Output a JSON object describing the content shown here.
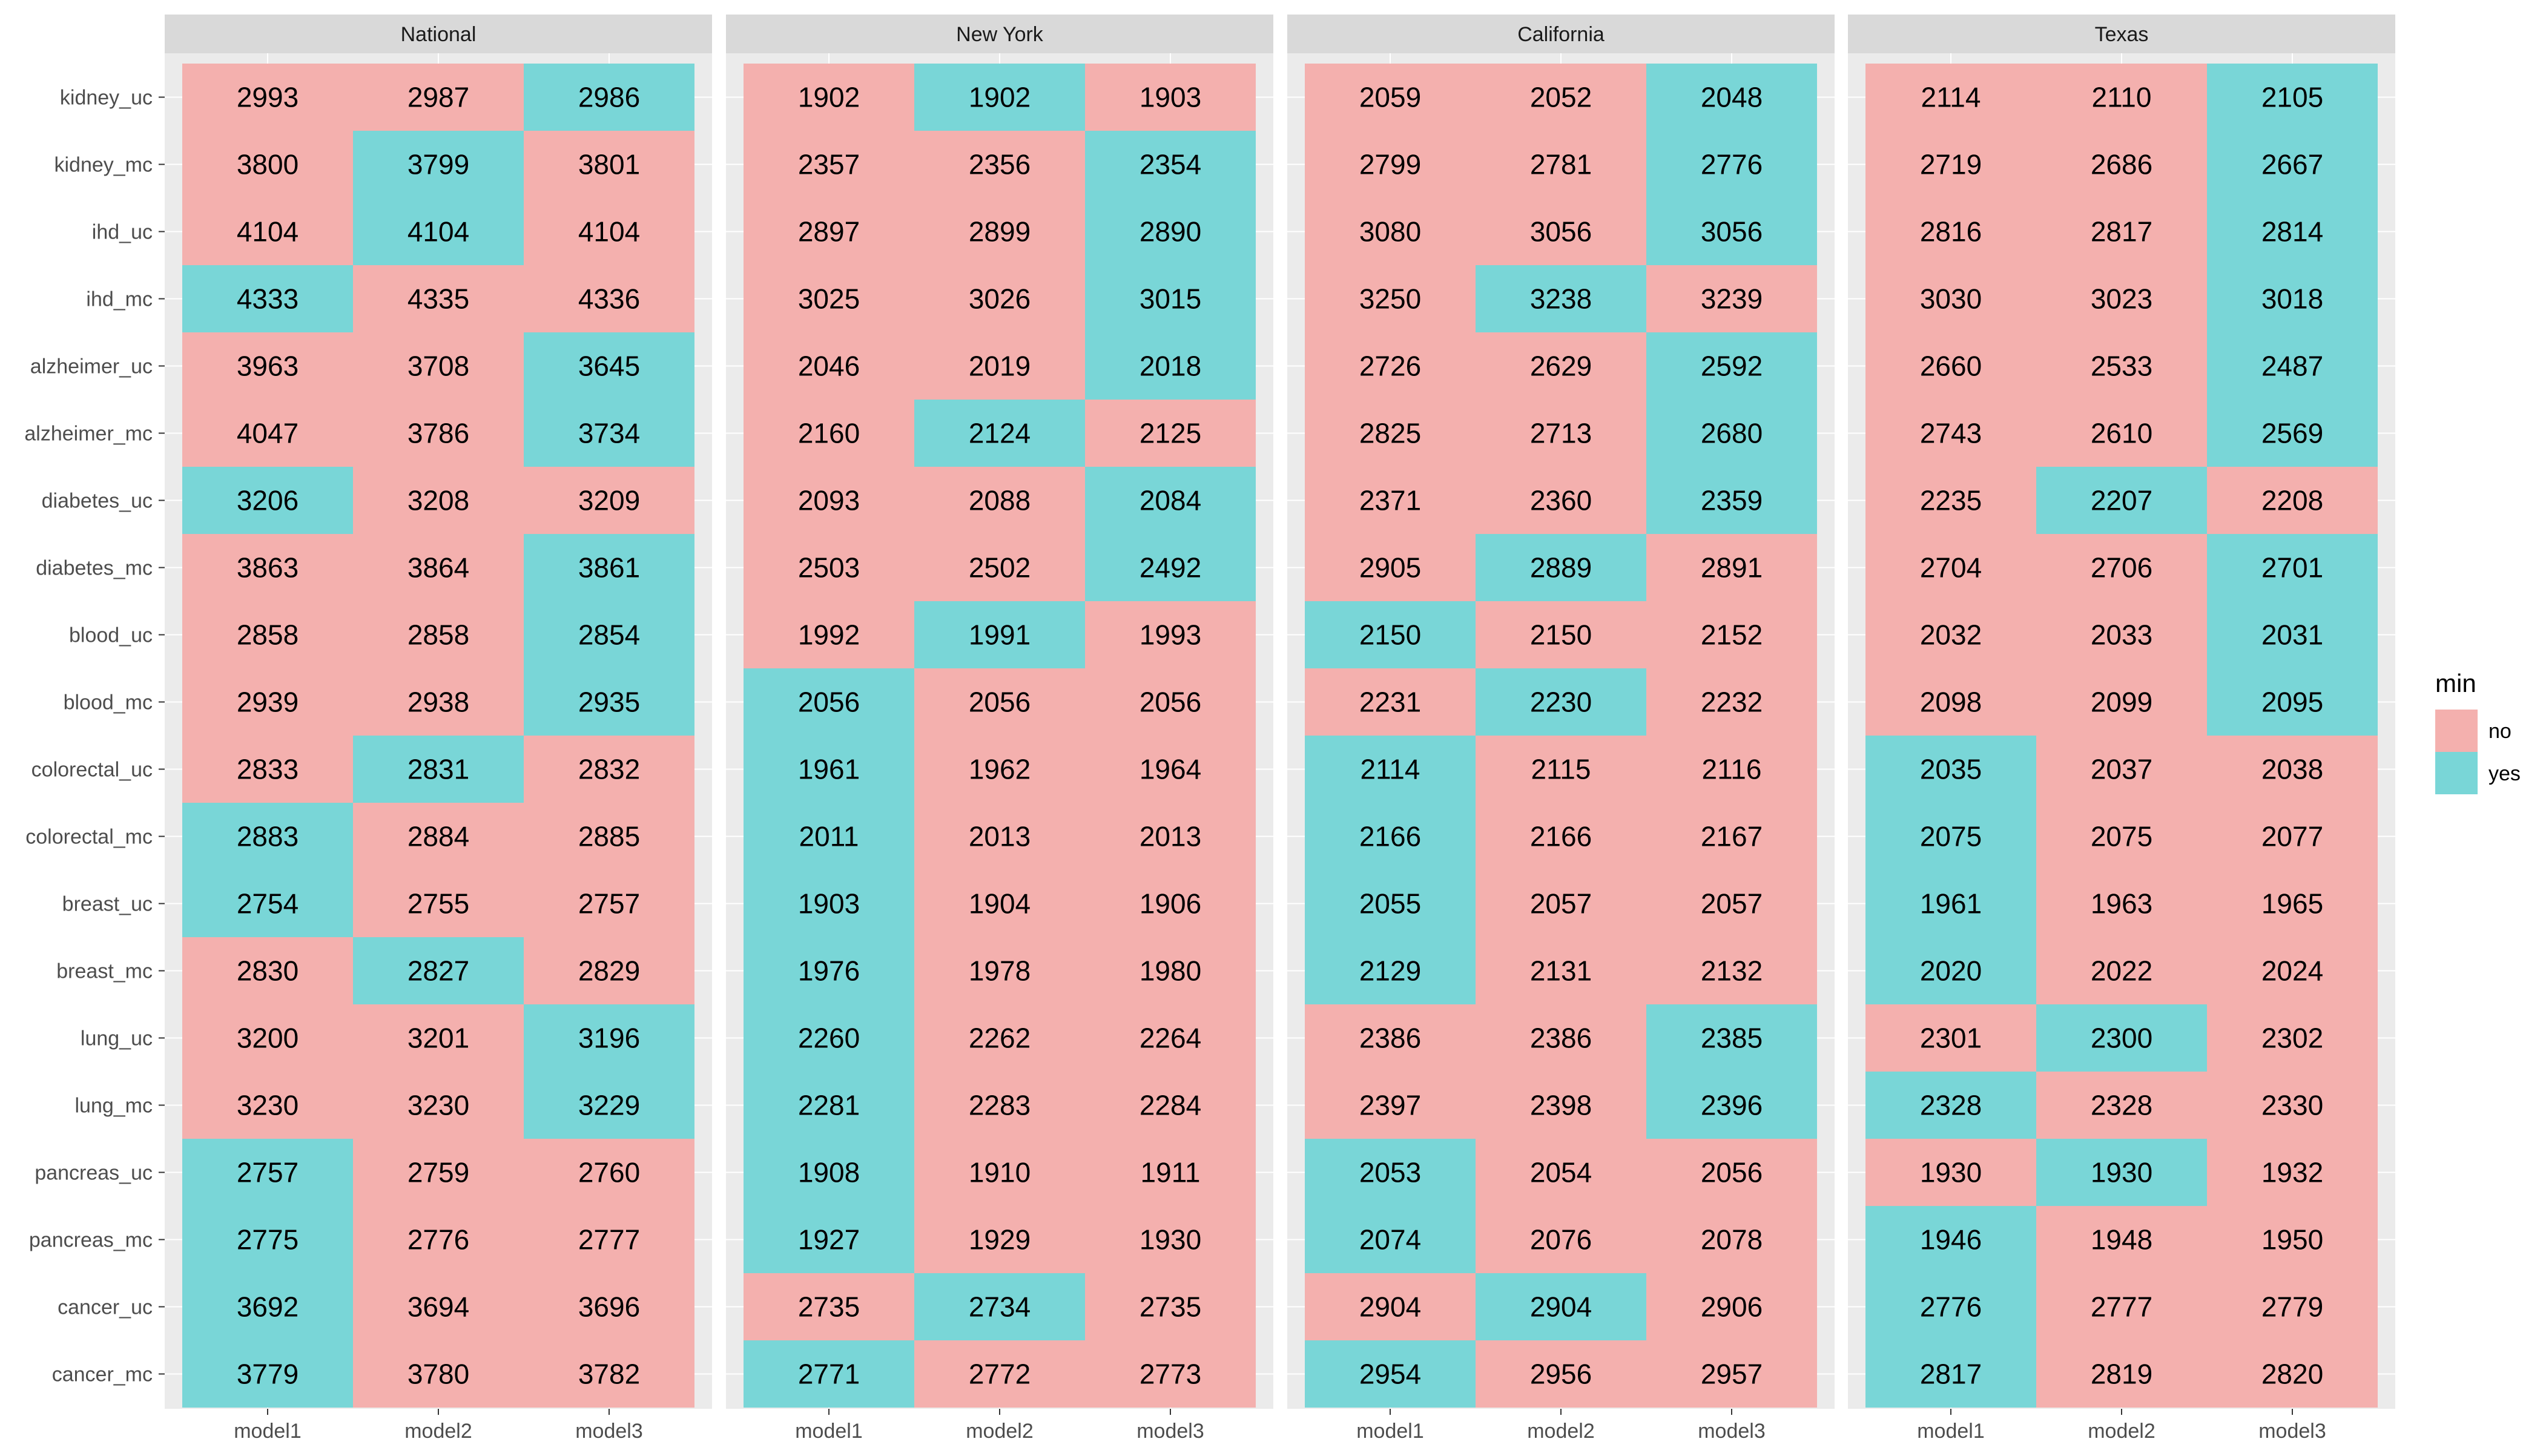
{
  "chart_data": {
    "type": "heatmap",
    "legend": {
      "title": "min",
      "position": "right",
      "entries": [
        {
          "label": "no",
          "color": "#F4B0AE"
        },
        {
          "label": "yes",
          "color": "#79D6D7"
        }
      ]
    },
    "colors": {
      "no": "#F4B0AE",
      "yes": "#79D6D7",
      "panel_bg": "#EBEBEB",
      "strip_bg": "#D9D9D9",
      "grid": "#FFFFFF"
    },
    "rows": [
      "kidney_uc",
      "kidney_mc",
      "ihd_uc",
      "ihd_mc",
      "alzheimer_uc",
      "alzheimer_mc",
      "diabetes_uc",
      "diabetes_mc",
      "blood_uc",
      "blood_mc",
      "colorectal_uc",
      "colorectal_mc",
      "breast_uc",
      "breast_mc",
      "lung_uc",
      "lung_mc",
      "pancreas_uc",
      "pancreas_mc",
      "cancer_uc",
      "cancer_mc"
    ],
    "columns": [
      "model1",
      "model2",
      "model3"
    ],
    "panels": [
      {
        "title": "National",
        "values": [
          [
            2993,
            2987,
            2986
          ],
          [
            3800,
            3799,
            3801
          ],
          [
            4104,
            4104,
            4104
          ],
          [
            4333,
            4335,
            4336
          ],
          [
            3963,
            3708,
            3645
          ],
          [
            4047,
            3786,
            3734
          ],
          [
            3206,
            3208,
            3209
          ],
          [
            3863,
            3864,
            3861
          ],
          [
            2858,
            2858,
            2854
          ],
          [
            2939,
            2938,
            2935
          ],
          [
            2833,
            2831,
            2832
          ],
          [
            2883,
            2884,
            2885
          ],
          [
            2754,
            2755,
            2757
          ],
          [
            2830,
            2827,
            2829
          ],
          [
            3200,
            3201,
            3196
          ],
          [
            3230,
            3230,
            3229
          ],
          [
            2757,
            2759,
            2760
          ],
          [
            2775,
            2776,
            2777
          ],
          [
            3692,
            3694,
            3696
          ],
          [
            3779,
            3780,
            3782
          ]
        ],
        "min": [
          [
            0,
            0,
            1
          ],
          [
            0,
            1,
            0
          ],
          [
            0,
            1,
            0
          ],
          [
            1,
            0,
            0
          ],
          [
            0,
            0,
            1
          ],
          [
            0,
            0,
            1
          ],
          [
            1,
            0,
            0
          ],
          [
            0,
            0,
            1
          ],
          [
            0,
            0,
            1
          ],
          [
            0,
            0,
            1
          ],
          [
            0,
            1,
            0
          ],
          [
            1,
            0,
            0
          ],
          [
            1,
            0,
            0
          ],
          [
            0,
            1,
            0
          ],
          [
            0,
            0,
            1
          ],
          [
            0,
            0,
            1
          ],
          [
            1,
            0,
            0
          ],
          [
            1,
            0,
            0
          ],
          [
            1,
            0,
            0
          ],
          [
            1,
            0,
            0
          ]
        ]
      },
      {
        "title": "New York",
        "values": [
          [
            1902,
            1902,
            1903
          ],
          [
            2357,
            2356,
            2354
          ],
          [
            2897,
            2899,
            2890
          ],
          [
            3025,
            3026,
            3015
          ],
          [
            2046,
            2019,
            2018
          ],
          [
            2160,
            2124,
            2125
          ],
          [
            2093,
            2088,
            2084
          ],
          [
            2503,
            2502,
            2492
          ],
          [
            1992,
            1991,
            1993
          ],
          [
            2056,
            2056,
            2056
          ],
          [
            1961,
            1962,
            1964
          ],
          [
            2011,
            2013,
            2013
          ],
          [
            1903,
            1904,
            1906
          ],
          [
            1976,
            1978,
            1980
          ],
          [
            2260,
            2262,
            2264
          ],
          [
            2281,
            2283,
            2284
          ],
          [
            1908,
            1910,
            1911
          ],
          [
            1927,
            1929,
            1930
          ],
          [
            2735,
            2734,
            2735
          ],
          [
            2771,
            2772,
            2773
          ]
        ],
        "min": [
          [
            0,
            1,
            0
          ],
          [
            0,
            0,
            1
          ],
          [
            0,
            0,
            1
          ],
          [
            0,
            0,
            1
          ],
          [
            0,
            0,
            1
          ],
          [
            0,
            1,
            0
          ],
          [
            0,
            0,
            1
          ],
          [
            0,
            0,
            1
          ],
          [
            0,
            1,
            0
          ],
          [
            1,
            0,
            0
          ],
          [
            1,
            0,
            0
          ],
          [
            1,
            0,
            0
          ],
          [
            1,
            0,
            0
          ],
          [
            1,
            0,
            0
          ],
          [
            1,
            0,
            0
          ],
          [
            1,
            0,
            0
          ],
          [
            1,
            0,
            0
          ],
          [
            1,
            0,
            0
          ],
          [
            0,
            1,
            0
          ],
          [
            1,
            0,
            0
          ]
        ]
      },
      {
        "title": "California",
        "values": [
          [
            2059,
            2052,
            2048
          ],
          [
            2799,
            2781,
            2776
          ],
          [
            3080,
            3056,
            3056
          ],
          [
            3250,
            3238,
            3239
          ],
          [
            2726,
            2629,
            2592
          ],
          [
            2825,
            2713,
            2680
          ],
          [
            2371,
            2360,
            2359
          ],
          [
            2905,
            2889,
            2891
          ],
          [
            2150,
            2150,
            2152
          ],
          [
            2231,
            2230,
            2232
          ],
          [
            2114,
            2115,
            2116
          ],
          [
            2166,
            2166,
            2167
          ],
          [
            2055,
            2057,
            2057
          ],
          [
            2129,
            2131,
            2132
          ],
          [
            2386,
            2386,
            2385
          ],
          [
            2397,
            2398,
            2396
          ],
          [
            2053,
            2054,
            2056
          ],
          [
            2074,
            2076,
            2078
          ],
          [
            2904,
            2904,
            2906
          ],
          [
            2954,
            2956,
            2957
          ]
        ],
        "min": [
          [
            0,
            0,
            1
          ],
          [
            0,
            0,
            1
          ],
          [
            0,
            0,
            1
          ],
          [
            0,
            1,
            0
          ],
          [
            0,
            0,
            1
          ],
          [
            0,
            0,
            1
          ],
          [
            0,
            0,
            1
          ],
          [
            0,
            1,
            0
          ],
          [
            1,
            0,
            0
          ],
          [
            0,
            1,
            0
          ],
          [
            1,
            0,
            0
          ],
          [
            1,
            0,
            0
          ],
          [
            1,
            0,
            0
          ],
          [
            1,
            0,
            0
          ],
          [
            0,
            0,
            1
          ],
          [
            0,
            0,
            1
          ],
          [
            1,
            0,
            0
          ],
          [
            1,
            0,
            0
          ],
          [
            0,
            1,
            0
          ],
          [
            1,
            0,
            0
          ]
        ]
      },
      {
        "title": "Texas",
        "values": [
          [
            2114,
            2110,
            2105
          ],
          [
            2719,
            2686,
            2667
          ],
          [
            2816,
            2817,
            2814
          ],
          [
            3030,
            3023,
            3018
          ],
          [
            2660,
            2533,
            2487
          ],
          [
            2743,
            2610,
            2569
          ],
          [
            2235,
            2207,
            2208
          ],
          [
            2704,
            2706,
            2701
          ],
          [
            2032,
            2033,
            2031
          ],
          [
            2098,
            2099,
            2095
          ],
          [
            2035,
            2037,
            2038
          ],
          [
            2075,
            2075,
            2077
          ],
          [
            1961,
            1963,
            1965
          ],
          [
            2020,
            2022,
            2024
          ],
          [
            2301,
            2300,
            2302
          ],
          [
            2328,
            2328,
            2330
          ],
          [
            1930,
            1930,
            1932
          ],
          [
            1946,
            1948,
            1950
          ],
          [
            2776,
            2777,
            2779
          ],
          [
            2817,
            2819,
            2820
          ]
        ],
        "min": [
          [
            0,
            0,
            1
          ],
          [
            0,
            0,
            1
          ],
          [
            0,
            0,
            1
          ],
          [
            0,
            0,
            1
          ],
          [
            0,
            0,
            1
          ],
          [
            0,
            0,
            1
          ],
          [
            0,
            1,
            0
          ],
          [
            0,
            0,
            1
          ],
          [
            0,
            0,
            1
          ],
          [
            0,
            0,
            1
          ],
          [
            1,
            0,
            0
          ],
          [
            1,
            0,
            0
          ],
          [
            1,
            0,
            0
          ],
          [
            1,
            0,
            0
          ],
          [
            0,
            1,
            0
          ],
          [
            1,
            0,
            0
          ],
          [
            0,
            1,
            0
          ],
          [
            1,
            0,
            0
          ],
          [
            1,
            0,
            0
          ],
          [
            1,
            0,
            0
          ]
        ]
      }
    ]
  }
}
